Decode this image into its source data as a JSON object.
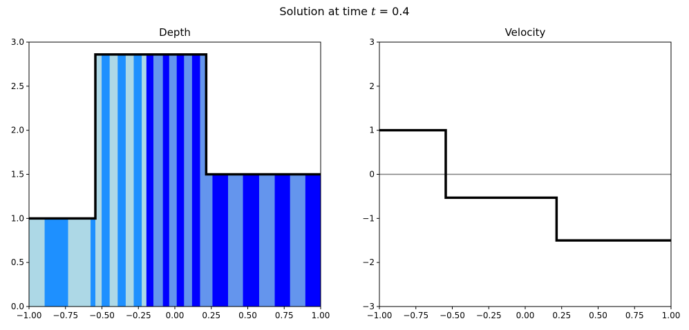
{
  "figure": {
    "title_prefix": "Solution at time ",
    "title_var": "t",
    "title_eq": " = 0.4"
  },
  "chart_data": [
    {
      "type": "area",
      "title": "Depth",
      "xlabel": "",
      "ylabel": "",
      "xlim": [
        -1.0,
        1.0
      ],
      "ylim": [
        0.0,
        3.0
      ],
      "xticks": [
        "−1.00",
        "−0.75",
        "−0.50",
        "−0.25",
        "0.00",
        "0.25",
        "0.50",
        "0.75",
        "1.00"
      ],
      "xtick_values": [
        -1.0,
        -0.75,
        -0.5,
        -0.25,
        0.0,
        0.25,
        0.5,
        0.75,
        1.0
      ],
      "yticks": [
        "0.0",
        "0.5",
        "1.0",
        "1.5",
        "2.0",
        "2.5",
        "3.0"
      ],
      "ytick_values": [
        0.0,
        0.5,
        1.0,
        1.5,
        2.0,
        2.5,
        3.0
      ],
      "grid": false,
      "line_color": "#000000",
      "series": [
        {
          "x": [
            -1.0,
            -0.545,
            -0.545,
            0.215,
            0.215,
            1.0
          ],
          "y": [
            1.0,
            1.0,
            2.86,
            2.86,
            1.5,
            1.5
          ]
        }
      ],
      "stripes": [
        {
          "x0": -1.0,
          "x1": -0.893,
          "color": "#add8e6"
        },
        {
          "x0": -0.893,
          "x1": -0.732,
          "color": "#1e90ff"
        },
        {
          "x0": -0.732,
          "x1": -0.578,
          "color": "#add8e6"
        },
        {
          "x0": -0.578,
          "x1": -0.545,
          "color": "#1e90ff"
        },
        {
          "x0": -0.545,
          "x1": -0.502,
          "color": "#add8e6"
        },
        {
          "x0": -0.502,
          "x1": -0.447,
          "color": "#1e90ff"
        },
        {
          "x0": -0.447,
          "x1": -0.392,
          "color": "#add8e6"
        },
        {
          "x0": -0.392,
          "x1": -0.337,
          "color": "#1e90ff"
        },
        {
          "x0": -0.337,
          "x1": -0.282,
          "color": "#add8e6"
        },
        {
          "x0": -0.282,
          "x1": -0.227,
          "color": "#1e90ff"
        },
        {
          "x0": -0.227,
          "x1": -0.195,
          "color": "#add8e6"
        },
        {
          "x0": -0.195,
          "x1": -0.147,
          "color": "#0000ff"
        },
        {
          "x0": -0.147,
          "x1": -0.082,
          "color": "#6495ed"
        },
        {
          "x0": -0.082,
          "x1": -0.039,
          "color": "#0000ff"
        },
        {
          "x0": -0.039,
          "x1": 0.013,
          "color": "#6495ed"
        },
        {
          "x0": 0.013,
          "x1": 0.063,
          "color": "#0000ff"
        },
        {
          "x0": 0.063,
          "x1": 0.118,
          "color": "#6495ed"
        },
        {
          "x0": 0.118,
          "x1": 0.173,
          "color": "#0000ff"
        },
        {
          "x0": 0.173,
          "x1": 0.215,
          "color": "#6495ed"
        },
        {
          "x0": 0.215,
          "x1": 0.258,
          "color": "#6495ed"
        },
        {
          "x0": 0.258,
          "x1": 0.365,
          "color": "#0000ff"
        },
        {
          "x0": 0.365,
          "x1": 0.467,
          "color": "#6495ed"
        },
        {
          "x0": 0.467,
          "x1": 0.578,
          "color": "#0000ff"
        },
        {
          "x0": 0.578,
          "x1": 0.685,
          "color": "#6495ed"
        },
        {
          "x0": 0.685,
          "x1": 0.79,
          "color": "#0000ff"
        },
        {
          "x0": 0.79,
          "x1": 0.895,
          "color": "#6495ed"
        },
        {
          "x0": 0.895,
          "x1": 1.0,
          "color": "#0000ff"
        }
      ]
    },
    {
      "type": "line",
      "title": "Velocity",
      "xlabel": "",
      "ylabel": "",
      "xlim": [
        -1.0,
        1.0
      ],
      "ylim": [
        -3.0,
        3.0
      ],
      "xticks": [
        "−1.00",
        "−0.75",
        "−0.50",
        "−0.25",
        "0.00",
        "0.25",
        "0.50",
        "0.75",
        "1.00"
      ],
      "xtick_values": [
        -1.0,
        -0.75,
        -0.5,
        -0.25,
        0.0,
        0.25,
        0.5,
        0.75,
        1.0
      ],
      "yticks": [
        "−3",
        "−2",
        "−1",
        "0",
        "1",
        "2",
        "3"
      ],
      "ytick_values": [
        -3,
        -2,
        -1,
        0,
        1,
        2,
        3
      ],
      "grid": false,
      "zero_line_color": "#808080",
      "line_color": "#000000",
      "series": [
        {
          "x": [
            -1.0,
            -0.545,
            -0.545,
            0.215,
            0.215,
            1.0
          ],
          "y": [
            1.0,
            1.0,
            -0.53,
            -0.53,
            -1.5,
            -1.5
          ]
        }
      ]
    }
  ]
}
